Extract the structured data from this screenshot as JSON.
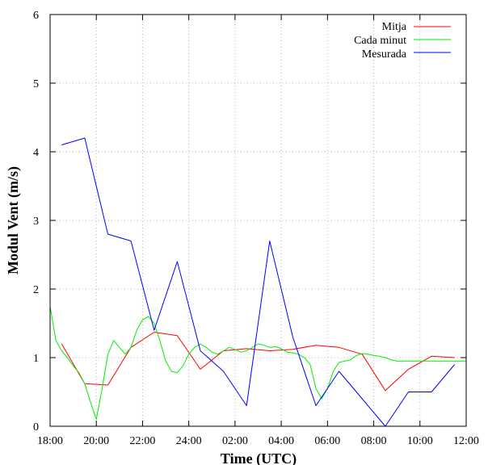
{
  "chart_data": {
    "type": "line",
    "xlabel": "Time (UTC)",
    "ylabel": "Modul Vent (m/s)",
    "x_ticks": [
      "18:00",
      "20:00",
      "22:00",
      "24:00",
      "02:00",
      "04:00",
      "06:00",
      "08:00",
      "10:00",
      "12:00"
    ],
    "x_tick_hours": [
      0,
      2,
      4,
      6,
      8,
      10,
      12,
      14,
      16,
      18
    ],
    "xlim_hours_from_18h": [
      0,
      18
    ],
    "ylim": [
      0,
      6
    ],
    "y_ticks": [
      0,
      1,
      2,
      3,
      4,
      5,
      6
    ],
    "grid": true,
    "legend_position": "top-right",
    "series": [
      {
        "name": "Mitja",
        "color": "#ff0000",
        "x_hours": [
          0.5,
          1.5,
          2.5,
          3.5,
          4.5,
          5.5,
          6.5,
          7.5,
          8.5,
          9.5,
          10.5,
          11.5,
          12.5,
          13.5,
          14.5,
          15.5,
          16.5,
          17.5
        ],
        "y": [
          1.2,
          0.62,
          0.6,
          1.15,
          1.37,
          1.32,
          0.83,
          1.1,
          1.13,
          1.1,
          1.12,
          1.18,
          1.15,
          1.05,
          0.52,
          0.83,
          1.02,
          1.0
        ]
      },
      {
        "name": "Cada minut",
        "color": "#00ee00",
        "x_hours": [
          0,
          0.25,
          0.5,
          0.75,
          1.0,
          1.25,
          1.5,
          1.75,
          2.0,
          2.25,
          2.5,
          2.75,
          3.0,
          3.25,
          3.5,
          3.75,
          4.0,
          4.25,
          4.5,
          4.75,
          5.0,
          5.25,
          5.5,
          5.75,
          6.0,
          6.25,
          6.5,
          6.75,
          7.0,
          7.25,
          7.5,
          7.75,
          8.0,
          8.25,
          8.5,
          8.75,
          9.0,
          9.25,
          9.5,
          9.75,
          10.0,
          10.25,
          10.5,
          10.75,
          11.0,
          11.25,
          11.5,
          11.75,
          12.0,
          12.25,
          12.5,
          12.75,
          13.0,
          13.25,
          13.5,
          13.75,
          14.0,
          14.25,
          14.5,
          14.75,
          15.0,
          15.25,
          15.5,
          15.75,
          16.0,
          16.25,
          16.5,
          16.75,
          17.0,
          17.25,
          17.5,
          17.75,
          18.0
        ],
        "y": [
          1.75,
          1.25,
          1.1,
          1.0,
          0.88,
          0.78,
          0.62,
          0.35,
          0.1,
          0.55,
          1.05,
          1.25,
          1.15,
          1.05,
          1.15,
          1.4,
          1.55,
          1.6,
          1.5,
          1.25,
          0.95,
          0.8,
          0.78,
          0.88,
          1.05,
          1.15,
          1.2,
          1.15,
          1.08,
          1.05,
          1.1,
          1.15,
          1.12,
          1.08,
          1.1,
          1.15,
          1.2,
          1.18,
          1.15,
          1.16,
          1.13,
          1.08,
          1.07,
          1.05,
          1.0,
          0.9,
          0.55,
          0.4,
          0.55,
          0.8,
          0.93,
          0.95,
          0.97,
          1.03,
          1.06,
          1.05,
          1.03,
          1.02,
          1.0,
          0.97,
          0.95,
          0.95,
          0.95,
          0.95,
          0.95,
          0.95,
          0.95,
          0.95,
          0.95,
          0.95,
          0.95,
          0.95,
          0.95
        ]
      },
      {
        "name": "Mesurada",
        "color": "#0000ff",
        "x_hours": [
          0.5,
          1.5,
          2.5,
          3.5,
          4.5,
          5.5,
          6.5,
          7.5,
          8.5,
          9.5,
          10.5,
          11.5,
          12.5,
          13.5,
          14.5,
          15.5,
          16.5,
          17.5
        ],
        "y": [
          4.1,
          4.2,
          2.8,
          2.7,
          1.4,
          2.4,
          1.1,
          0.8,
          0.3,
          2.7,
          1.3,
          0.3,
          0.8,
          0.4,
          0.0,
          0.5,
          0.5,
          0.9
        ]
      }
    ]
  }
}
